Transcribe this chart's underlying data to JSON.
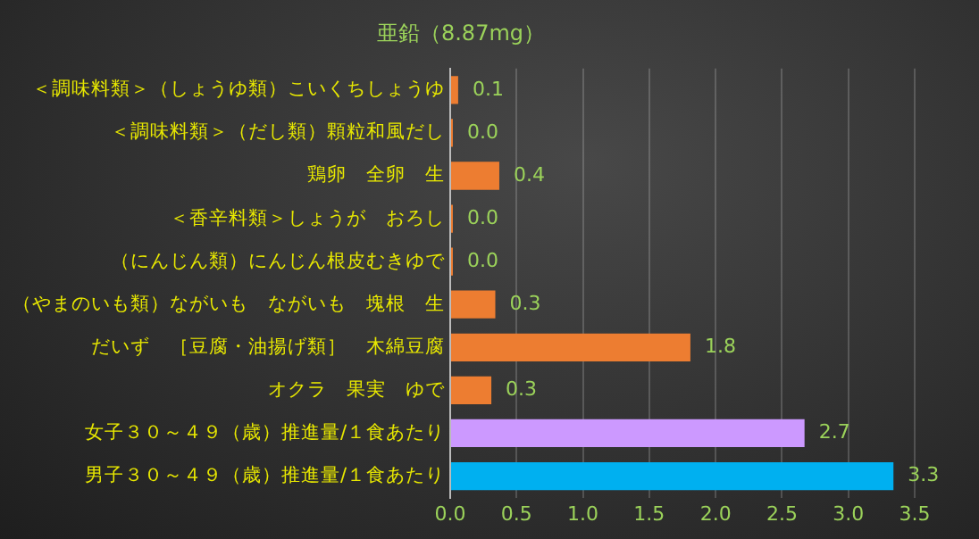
{
  "chart_data": {
    "type": "bar",
    "orientation": "horizontal",
    "title": "亜鉛（8.87mg）",
    "categories": [
      "＜調味料類＞（しょうゆ類）こいくちしょうゆ",
      "＜調味料類＞（だし類）顆粒和風だし",
      "鶏卵　全卵　生",
      "＜香辛料類＞しょうが　おろし",
      "（にんじん類）にんじん根皮むきゆで",
      "（やまのいも類）ながいも　ながいも　塊根　生",
      "だいず　［豆腐・油揚げ類］　木綿豆腐",
      "オクラ　果実　ゆで",
      "女子３０～４９（歳）推進量/１食あたり",
      "男子３０～４９（歳）推進量/１食あたり"
    ],
    "values": [
      0.06,
      0.02,
      0.37,
      0.02,
      0.02,
      0.34,
      1.81,
      0.31,
      2.67,
      3.34
    ],
    "value_labels": [
      "0.1",
      "0.0",
      "0.4",
      "0.0",
      "0.0",
      "0.3",
      "1.8",
      "0.3",
      "2.7",
      "3.3"
    ],
    "colors": [
      "#ed7d31",
      "#ed7d31",
      "#ed7d31",
      "#ed7d31",
      "#ed7d31",
      "#ed7d31",
      "#ed7d31",
      "#ed7d31",
      "#cc99ff",
      "#00b0f0"
    ],
    "xlim": [
      0,
      3.5
    ],
    "xticks": [
      {
        "value": 0,
        "label": "0.0"
      },
      {
        "value": 0.5,
        "label": "0.5"
      },
      {
        "value": 1,
        "label": "1.0"
      },
      {
        "value": 1.5,
        "label": "1.5"
      },
      {
        "value": 2,
        "label": "2.0"
      },
      {
        "value": 2.5,
        "label": "2.5"
      },
      {
        "value": 3,
        "label": "3.0"
      },
      {
        "value": 3.5,
        "label": "3.5"
      }
    ],
    "grid": "x",
    "legend": false
  }
}
